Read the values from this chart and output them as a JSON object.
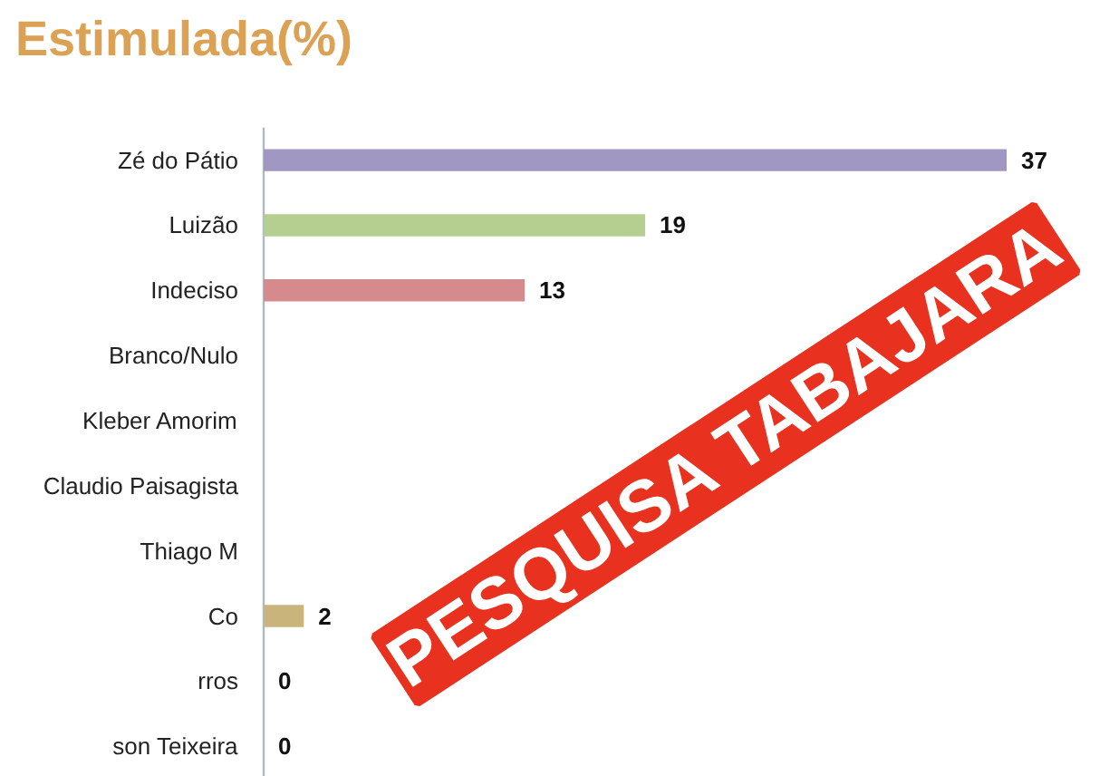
{
  "chart_data": {
    "type": "bar",
    "orientation": "horizontal",
    "title": "Estimulada(%)",
    "categories": [
      "Zé do Pátio",
      "Luizão",
      "Indeciso",
      "Branco/Nulo",
      "Kleber Amorim",
      "Claudio Paisagista",
      "Thiago M",
      "Co",
      "rros",
      "son Teixeira"
    ],
    "values": [
      37,
      19,
      13,
      null,
      null,
      null,
      null,
      2,
      0,
      0
    ],
    "colors": [
      "#a097c2",
      "#b5cf90",
      "#d58b8e",
      "#8fa4d0",
      "#d98b4b",
      "#4b8aa9",
      null,
      "#c9b47b",
      null,
      "#4b7a9b"
    ],
    "data_labels": true,
    "annotations": [
      "PESQUISA TABAJARA"
    ]
  }
}
